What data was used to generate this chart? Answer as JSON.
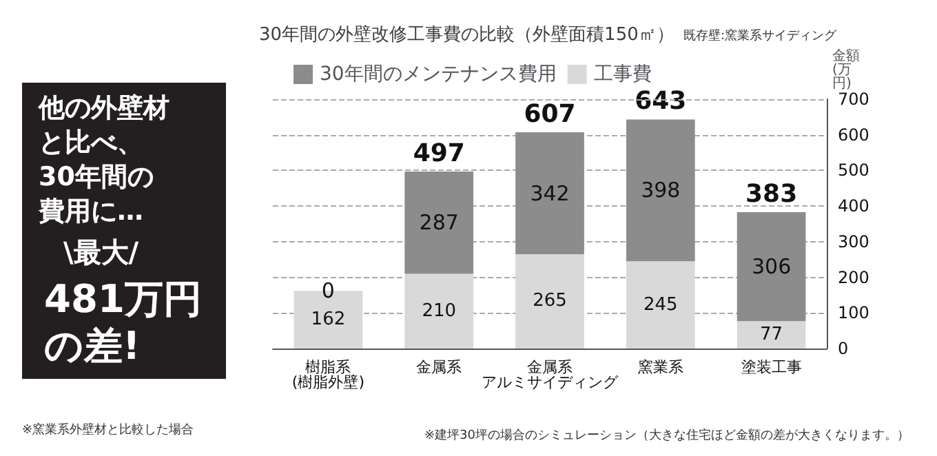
{
  "chart_data": {
    "type": "bar",
    "stacked": true,
    "title": "30年間の外壁改修工事費の比較（外壁面積150㎡）",
    "subtitle": "既存壁:窯業系サイディング",
    "ylabel": "金額(万円)",
    "categories": [
      "樹脂系(樹脂外壁)",
      "金属系",
      "金属系アルミサイディング",
      "窯業系",
      "塗装工事"
    ],
    "series": [
      {
        "name": "工事費",
        "color": "#d9d9d9",
        "values": [
          162,
          210,
          265,
          245,
          77
        ]
      },
      {
        "name": "30年間のメンテナンス費用",
        "color": "#8c8c8c",
        "values": [
          0,
          287,
          342,
          398,
          306
        ]
      }
    ],
    "totals": [
      null,
      "497",
      "607",
      "643",
      "383"
    ],
    "data_labels": true,
    "ylim": [
      0,
      700
    ],
    "yticks": [
      0,
      100,
      200,
      300,
      400,
      500,
      600,
      700
    ],
    "grid": "y",
    "legend": "top left",
    "annotations": [
      "他の外壁材と比べ、30年間の費用に…",
      "\\最大/",
      "481万円の差!",
      "※窯業系外壁材と比較した場合",
      "※建坪30坪の場合のシミュレーション（大きな住宅ほど金額の差が大きくなります。）"
    ]
  }
}
